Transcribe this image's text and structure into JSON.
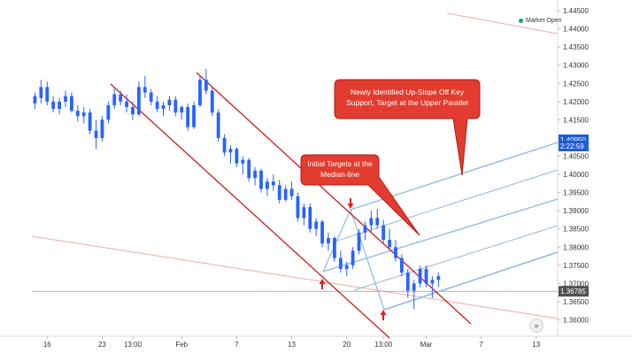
{
  "status": {
    "label": "Market Open",
    "color": "#1aa260"
  },
  "colors": {
    "candle": "#2962ff",
    "channel": "#d11a1a",
    "fork": "#8fb9e3",
    "callout_fill": "#e23b2f",
    "callout_stroke": "#b51d14",
    "arrow": "#e01f1f",
    "faint_line": "#f2a9a9",
    "horizontal": "#9a9a9a",
    "label_blue": "#1f5cd6",
    "label_gray": "#505050"
  },
  "icons": {
    "scroll": "double-chevron-right-icon"
  },
  "chart_data": {
    "type": "candlestick",
    "instrument_note": "",
    "ylim": [
      1.3555,
      1.4455
    ],
    "y_ticks": [
      "1.44500",
      "1.44000",
      "1.43500",
      "1.43000",
      "1.42500",
      "1.42000",
      "1.41500",
      "1.41000",
      "1.40500",
      "1.40000",
      "1.39500",
      "1.39000",
      "1.38500",
      "1.38000",
      "1.37500",
      "1.37000",
      "1.36500",
      "1.36000"
    ],
    "x_ticks": [
      "16",
      "23",
      "13:00",
      "Feb",
      "7",
      "13",
      "20",
      "13:00",
      "Mar",
      "7",
      "13"
    ],
    "x_tick_index": [
      2,
      11,
      16,
      24,
      33,
      42,
      51,
      57,
      64,
      73,
      82
    ],
    "bars_total": 86,
    "price_labels": [
      {
        "value": 1.4095,
        "text": "1.40950",
        "style": "blue"
      },
      {
        "value": 1.4078,
        "text": "2:22:59",
        "style": "blue"
      },
      {
        "value": 1.36785,
        "text": "1.36785",
        "style": "gray"
      }
    ],
    "horizontal_line": 1.36785,
    "annotations": [
      "Newly Identified Up-Slope Off Key Support, Target at the Upper Parallel",
      "Initial Targets at the Median-line"
    ],
    "candles": [
      [
        1.4195,
        1.4225,
        1.418,
        1.4215
      ],
      [
        1.421,
        1.426,
        1.4195,
        1.424
      ],
      [
        1.424,
        1.4255,
        1.419,
        1.42
      ],
      [
        1.42,
        1.4215,
        1.417,
        1.418
      ],
      [
        1.418,
        1.421,
        1.4165,
        1.42
      ],
      [
        1.42,
        1.423,
        1.4185,
        1.4215
      ],
      [
        1.4215,
        1.4225,
        1.417,
        1.4175
      ],
      [
        1.4175,
        1.419,
        1.4145,
        1.416
      ],
      [
        1.416,
        1.4185,
        1.414,
        1.417
      ],
      [
        1.417,
        1.418,
        1.411,
        1.412
      ],
      [
        1.412,
        1.415,
        1.407,
        1.41
      ],
      [
        1.41,
        1.416,
        1.409,
        1.415
      ],
      [
        1.415,
        1.42,
        1.414,
        1.419
      ],
      [
        1.419,
        1.4235,
        1.418,
        1.422
      ],
      [
        1.422,
        1.423,
        1.419,
        1.42
      ],
      [
        1.42,
        1.422,
        1.417,
        1.4185
      ],
      [
        1.4185,
        1.42,
        1.415,
        1.4165
      ],
      [
        1.4165,
        1.4255,
        1.416,
        1.424
      ],
      [
        1.424,
        1.427,
        1.421,
        1.4225
      ],
      [
        1.4225,
        1.4235,
        1.419,
        1.42
      ],
      [
        1.42,
        1.4215,
        1.417,
        1.418
      ],
      [
        1.418,
        1.42,
        1.416,
        1.419
      ],
      [
        1.419,
        1.4215,
        1.4175,
        1.4205
      ],
      [
        1.4205,
        1.4215,
        1.416,
        1.417
      ],
      [
        1.417,
        1.419,
        1.415,
        1.4185
      ],
      [
        1.4185,
        1.4195,
        1.412,
        1.413
      ],
      [
        1.413,
        1.42,
        1.4125,
        1.419
      ],
      [
        1.419,
        1.427,
        1.4185,
        1.426
      ],
      [
        1.426,
        1.429,
        1.422,
        1.423
      ],
      [
        1.423,
        1.424,
        1.416,
        1.417
      ],
      [
        1.417,
        1.418,
        1.409,
        1.41
      ],
      [
        1.41,
        1.411,
        1.405,
        1.406
      ],
      [
        1.406,
        1.408,
        1.403,
        1.407
      ],
      [
        1.407,
        1.4075,
        1.402,
        1.403
      ],
      [
        1.403,
        1.405,
        1.4,
        1.404
      ],
      [
        1.404,
        1.4045,
        1.398,
        1.399
      ],
      [
        1.399,
        1.402,
        1.397,
        1.401
      ],
      [
        1.401,
        1.4015,
        1.395,
        1.396
      ],
      [
        1.396,
        1.399,
        1.394,
        1.398
      ],
      [
        1.398,
        1.4,
        1.3955,
        1.397
      ],
      [
        1.397,
        1.3985,
        1.392,
        1.393
      ],
      [
        1.393,
        1.397,
        1.3925,
        1.396
      ],
      [
        1.396,
        1.398,
        1.393,
        1.394
      ],
      [
        1.394,
        1.395,
        1.387,
        1.388
      ],
      [
        1.388,
        1.392,
        1.386,
        1.391
      ],
      [
        1.391,
        1.392,
        1.384,
        1.385
      ],
      [
        1.385,
        1.388,
        1.383,
        1.387
      ],
      [
        1.387,
        1.3875,
        1.38,
        1.381
      ],
      [
        1.381,
        1.384,
        1.379,
        1.3825
      ],
      [
        1.3825,
        1.383,
        1.376,
        1.377
      ],
      [
        1.377,
        1.379,
        1.373,
        1.374
      ],
      [
        1.374,
        1.376,
        1.372,
        1.375
      ],
      [
        1.375,
        1.38,
        1.374,
        1.379
      ],
      [
        1.379,
        1.385,
        1.378,
        1.384
      ],
      [
        1.384,
        1.387,
        1.382,
        1.386
      ],
      [
        1.386,
        1.39,
        1.384,
        1.388
      ],
      [
        1.388,
        1.3905,
        1.385,
        1.386
      ],
      [
        1.386,
        1.3875,
        1.381,
        1.382
      ],
      [
        1.382,
        1.385,
        1.379,
        1.38
      ],
      [
        1.38,
        1.382,
        1.376,
        1.377
      ],
      [
        1.377,
        1.378,
        1.372,
        1.373
      ],
      [
        1.373,
        1.374,
        1.366,
        1.368
      ],
      [
        1.368,
        1.371,
        1.363,
        1.37
      ],
      [
        1.37,
        1.375,
        1.369,
        1.374
      ],
      [
        1.374,
        1.375,
        1.369,
        1.37
      ],
      [
        1.37,
        1.372,
        1.366,
        1.371
      ],
      [
        1.371,
        1.373,
        1.369,
        1.372
      ]
    ]
  }
}
